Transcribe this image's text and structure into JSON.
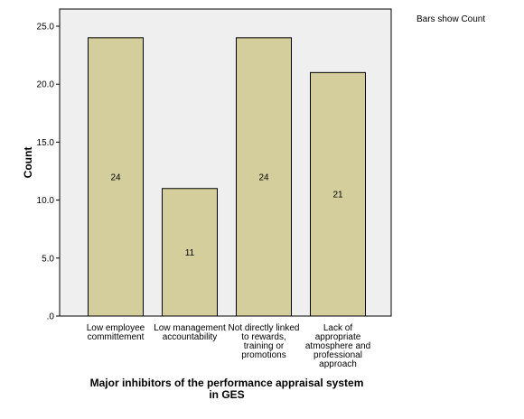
{
  "note": "Bars show Count",
  "chart_data": {
    "type": "bar",
    "categories": [
      [
        "Low employee",
        "committement"
      ],
      [
        "Low management",
        "accountability"
      ],
      [
        "Not directly linked",
        "to rewards,",
        "training or",
        "promotions"
      ],
      [
        "Lack of",
        "appropriate",
        "atmosphere and",
        "professional",
        "approach"
      ]
    ],
    "values": [
      24,
      11,
      24,
      21
    ],
    "data_labels": [
      "24",
      "11",
      "24",
      "21"
    ],
    "ylabel": "Count",
    "xlabel": [
      "Major inhibitors of the performance appraisal system",
      "in GES"
    ],
    "ylim": [
      0,
      25
    ],
    "y_ticks": [
      ".0",
      "5.0",
      "10.0",
      "15.0",
      "20.0",
      "25.0"
    ],
    "y_tick_values": [
      0,
      5,
      10,
      15,
      20,
      25
    ],
    "colors": {
      "bar_fill": "#d3ce9c",
      "bar_stroke": "#000000",
      "plot_background": "#efefef",
      "axis": "#000000"
    }
  }
}
